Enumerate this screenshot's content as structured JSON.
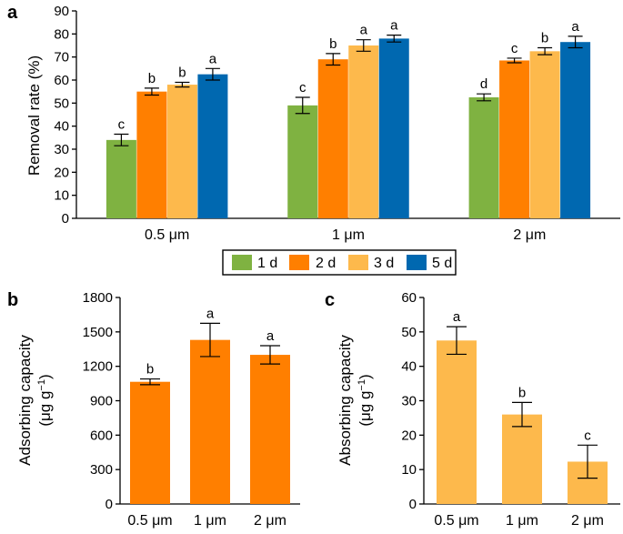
{
  "chart_data": [
    {
      "panel": "a",
      "type": "bar",
      "ylabel": "Removal rate (%)",
      "ylim": [
        0,
        90
      ],
      "yticks": [
        0,
        10,
        20,
        30,
        40,
        50,
        60,
        70,
        80,
        90
      ],
      "categories": [
        "0.5 μm",
        "1 μm",
        "2 μm"
      ],
      "legend": {
        "placement": "bottom-center",
        "boxed": true
      },
      "series": [
        {
          "name": "1 d",
          "color": "#7fb241",
          "values": [
            34,
            49,
            52.5
          ],
          "errors": [
            2.5,
            3.5,
            1.5
          ],
          "labels": [
            "c",
            "c",
            "d"
          ]
        },
        {
          "name": "2 d",
          "color": "#ff7f00",
          "values": [
            55,
            69,
            68.5
          ],
          "errors": [
            1.5,
            2.5,
            1.0
          ],
          "labels": [
            "b",
            "b",
            "c"
          ]
        },
        {
          "name": "3 d",
          "color": "#fdb94c",
          "values": [
            58,
            75,
            72.5
          ],
          "errors": [
            1.0,
            2.5,
            1.5
          ],
          "labels": [
            "b",
            "a",
            "b"
          ]
        },
        {
          "name": "5 d",
          "color": "#0068b0",
          "values": [
            62.5,
            78,
            76.5
          ],
          "errors": [
            2.5,
            1.5,
            2.5
          ],
          "labels": [
            "a",
            "a",
            "a"
          ]
        }
      ]
    },
    {
      "panel": "b",
      "type": "bar",
      "ylabel_line1": "Adsorbing capacity",
      "ylabel_line2": "(μg g",
      "ylabel_sup": "−1",
      "ylabel_close": ")",
      "ylim": [
        0,
        1800
      ],
      "yticks": [
        0,
        300,
        600,
        900,
        1200,
        1500,
        1800
      ],
      "categories": [
        "0.5 μm",
        "1 μm",
        "2 μm"
      ],
      "color": "#ff7f00",
      "values": [
        1065,
        1430,
        1300
      ],
      "errors": [
        25,
        145,
        80
      ],
      "labels": [
        "b",
        "a",
        "a"
      ]
    },
    {
      "panel": "c",
      "type": "bar",
      "ylabel_line1": "Absorbing capacity",
      "ylabel_line2": "(μg g",
      "ylabel_sup": "−1",
      "ylabel_close": ")",
      "ylim": [
        0,
        60
      ],
      "yticks": [
        0,
        10,
        20,
        30,
        40,
        50,
        60
      ],
      "categories": [
        "0.5 μm",
        "1 μm",
        "2 μm"
      ],
      "color": "#fdb94c",
      "values": [
        47.5,
        26,
        12.3
      ],
      "errors": [
        4,
        3.5,
        4.8
      ],
      "labels": [
        "a",
        "b",
        "c"
      ]
    }
  ]
}
